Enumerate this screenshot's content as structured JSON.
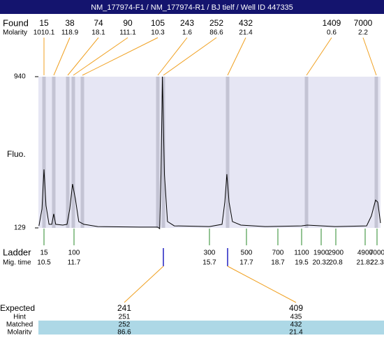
{
  "chart_data": {
    "type": "line",
    "title": "NM_177974-F1 / NM_177974-R1 / BJ tielf / Well ID 447335",
    "y_label": "Fluo.",
    "ylim": [
      129,
      940
    ],
    "yticks": [
      129,
      940
    ],
    "color": "#000000",
    "x": [
      10.3,
      10.42,
      10.5,
      10.58,
      10.7,
      10.81,
      10.89,
      10.97,
      11.25,
      11.42,
      11.53,
      11.64,
      11.74,
      11.84,
      11.99,
      12.4,
      13.64,
      14.17,
      14.23,
      14.27,
      14.31,
      14.37,
      14.46,
      14.66,
      15.7,
      16.38,
      16.53,
      16.64,
      16.76,
      16.94,
      17.4,
      18.3,
      19.5,
      19.73,
      20.78,
      21.88,
      22.07,
      22.24,
      22.33,
      22.44
    ],
    "values": [
      140,
      230,
      443,
      249,
      148,
      148,
      204,
      148,
      144,
      148,
      230,
      364,
      286,
      163,
      148,
      136,
      133,
      133,
      125,
      417,
      940,
      417,
      163,
      140,
      136,
      148,
      267,
      417,
      267,
      163,
      144,
      136,
      140,
      144,
      136,
      140,
      193,
      278,
      267,
      155
    ],
    "found": {
      "label": "Found",
      "molarity_label": "Molarity",
      "sizes": [
        15,
        38,
        74,
        90,
        105,
        243,
        252,
        432,
        1409,
        7000
      ],
      "molarity": [
        1010.1,
        118.9,
        18.1,
        111.1,
        10.3,
        1.6,
        86.6,
        21.4,
        0.6,
        2.2
      ]
    },
    "ladder": {
      "label": "Ladder",
      "time_label": "Mig. time",
      "sizes": [
        15,
        100,
        300,
        500,
        700,
        1100,
        1900,
        2900,
        4900,
        7000
      ],
      "times": [
        10.5,
        11.7,
        15.7,
        17.7,
        18.7,
        19.5,
        20.32,
        20.8,
        21.82,
        22.3
      ]
    },
    "expected": {
      "labels": [
        "Expected",
        "Hint",
        "Matched",
        "Molarity"
      ],
      "columns": [
        [
          241,
          251,
          252,
          86.6
        ],
        [
          409,
          435,
          432,
          21.4
        ]
      ]
    }
  }
}
